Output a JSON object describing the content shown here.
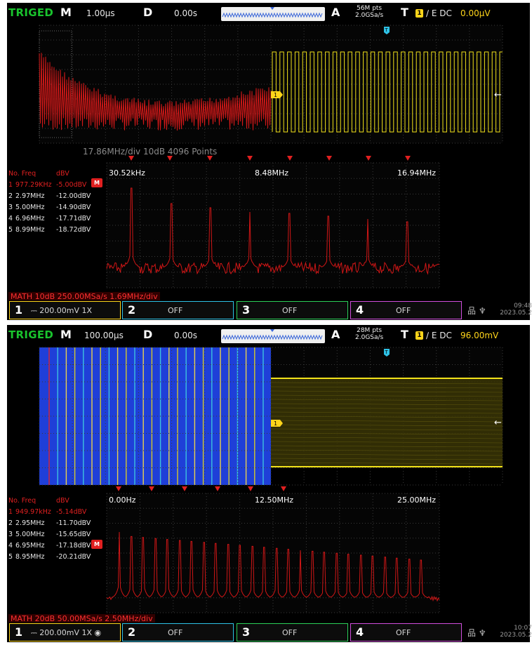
{
  "screens": [
    {
      "trig_status": "TRIGED",
      "timebase_letter": "M",
      "timebase": "1.00µs",
      "delay_letter": "D",
      "delay": "0.00s",
      "acq_letter": "A",
      "points_line1": "56M pts",
      "points_line2": "2.0GSa/s",
      "trig_letter": "T",
      "trig_channel": "1",
      "trig_edge": "∕ E DC",
      "trig_level": "0.00µV",
      "points_info": "17.86MHz/div  10dB 4096 Points",
      "freq_header_no": "No. Freq",
      "freq_header_dbv": "dBV",
      "peaks": [
        {
          "no": "1",
          "freq": "977.29KHz",
          "dbv": "-5.00dBV"
        },
        {
          "no": "2",
          "freq": "2.97MHz",
          "dbv": "-12.00dBV"
        },
        {
          "no": "3",
          "freq": "5.00MHz",
          "dbv": "-14.90dBV"
        },
        {
          "no": "4",
          "freq": "6.96MHz",
          "dbv": "-17.71dBV"
        },
        {
          "no": "5",
          "freq": "8.99MHz",
          "dbv": "-18.72dBV"
        }
      ],
      "m_badge": "M",
      "freq_labels": [
        "30.52kHz",
        "8.48MHz",
        "16.94MHz"
      ],
      "math_info": "MATH 10dB 250.00MSa/s 1.69MHz/div",
      "channels": [
        {
          "num": "1",
          "label": "⎓ 200.00mV 1X"
        },
        {
          "num": "2",
          "label": "OFF"
        },
        {
          "num": "3",
          "label": "OFF"
        },
        {
          "num": "4",
          "label": "OFF"
        }
      ],
      "sys_icons": "品 ♆",
      "clock_time": "09:48",
      "clock_date": "2023.05.2"
    },
    {
      "trig_status": "TRIGED",
      "timebase_letter": "M",
      "timebase": "100.00µs",
      "delay_letter": "D",
      "delay": "0.00s",
      "acq_letter": "A",
      "points_line1": "28M pts",
      "points_line2": "2.0GSa/s",
      "trig_letter": "T",
      "trig_channel": "1",
      "trig_edge": "∕ E DC",
      "trig_level": "96.00mV",
      "points_info": "",
      "freq_header_no": "No. Freq",
      "freq_header_dbv": "dBV",
      "peaks": [
        {
          "no": "1",
          "freq": "949.97kHz",
          "dbv": "-5.14dBV"
        },
        {
          "no": "2",
          "freq": "2.95MHz",
          "dbv": "-11.70dBV"
        },
        {
          "no": "3",
          "freq": "5.00MHz",
          "dbv": "-15.65dBV"
        },
        {
          "no": "4",
          "freq": "6.95MHz",
          "dbv": "-17.18dBV"
        },
        {
          "no": "5",
          "freq": "8.95MHz",
          "dbv": "-20.21dBV"
        }
      ],
      "m_badge": "M",
      "freq_labels": [
        "0.00Hz",
        "12.50MHz",
        "25.00MHz"
      ],
      "math_info": "MATH 20dB 50.00MSa/s 2.50MHz/div",
      "channels": [
        {
          "num": "1",
          "label": "⎓ 200.00mV 1X ◉"
        },
        {
          "num": "2",
          "label": "OFF"
        },
        {
          "num": "3",
          "label": "OFF"
        },
        {
          "num": "4",
          "label": "OFF"
        }
      ],
      "sys_icons": "品 ♆",
      "clock_time": "10:07",
      "clock_date": "2023.05.2"
    }
  ],
  "colors": {
    "trig_green": "#19c32d",
    "ch1_yellow": "#ffd51a",
    "math_red": "#e02020",
    "ch2_cyan": "#2ec2e6",
    "ch3_green": "#2bcf58",
    "ch4_magenta": "#d04ddc",
    "waterfall_blue": "#1f3fd8"
  },
  "icons": {
    "trigger_marker": "trigger-t-marker",
    "channel_marker": "channel-1-marker",
    "level_arrow": "left-arrow-icon",
    "lan": "lan-icon",
    "usb": "usb-icon"
  }
}
